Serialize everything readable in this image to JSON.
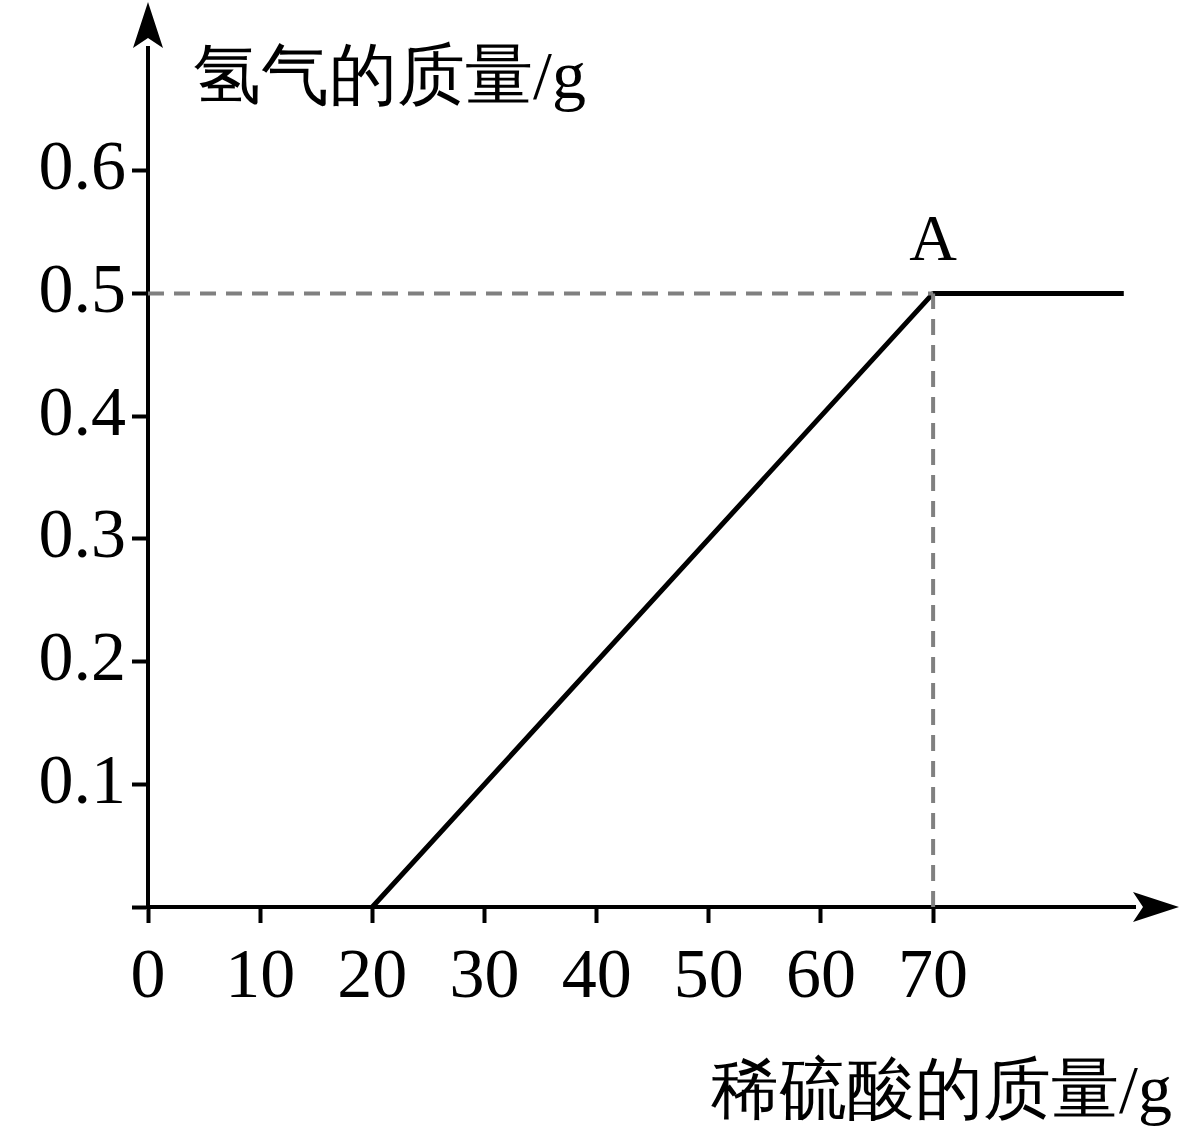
{
  "chart_data": {
    "type": "line",
    "xlabel": "稀硫酸的质量/g",
    "ylabel": "氢气的质量/g",
    "xlim": [
      0,
      88
    ],
    "xticks": [
      0,
      10,
      20,
      30,
      40,
      50,
      60,
      70
    ],
    "ylim": [
      0,
      0.7
    ],
    "yticks": [
      {
        "value": 0,
        "label": null
      },
      0.1,
      0.2,
      0.3,
      0.4,
      0.5,
      0.6
    ],
    "series": [
      {
        "color": "#000000",
        "x": [
          20,
          70,
          87
        ],
        "values": [
          0,
          0.5,
          0.5
        ]
      }
    ],
    "ref_lines": [
      {
        "axis": "y",
        "value": 0.5,
        "color": "#808080",
        "line_style": "dashed"
      },
      {
        "axis": "x",
        "value": 70,
        "color": "#808080",
        "line_style": "dashed"
      }
    ],
    "annotations": [
      {
        "text": "A",
        "x": 70,
        "y": 0.5
      }
    ],
    "grid": false,
    "legend": false,
    "marker": "none",
    "line_style": "solid"
  }
}
